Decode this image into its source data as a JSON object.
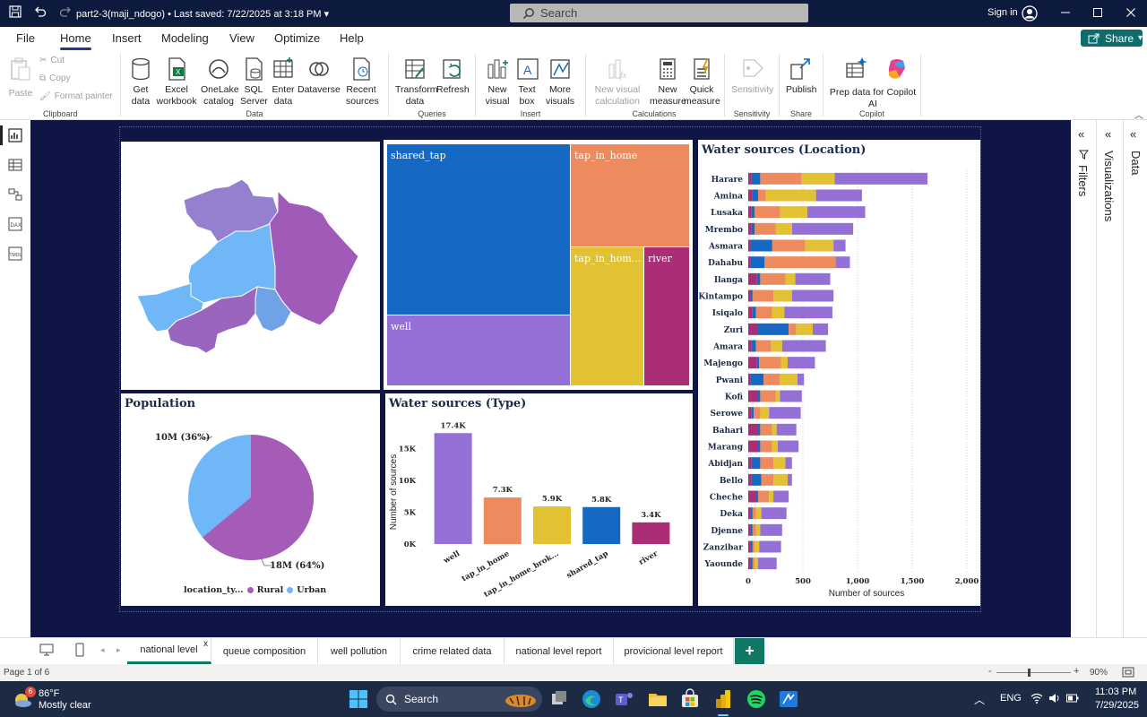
{
  "titlebar": {
    "document_title": "part2-3(maji_ndogo) • Last saved: 7/22/2025 at 3:18 PM",
    "search_placeholder": "Search",
    "signin_label": "Sign in"
  },
  "menu": {
    "tabs": [
      "File",
      "Home",
      "Insert",
      "Modeling",
      "View",
      "Optimize",
      "Help"
    ],
    "active_tab": "Home",
    "share_label": "Share"
  },
  "ribbon": {
    "clipboard": {
      "paste": "Paste",
      "cut": "Cut",
      "copy": "Copy",
      "format_painter": "Format painter",
      "group": "Clipboard"
    },
    "data": {
      "get_data": "Get data",
      "excel": "Excel workbook",
      "onelake": "OneLake catalog",
      "sql": "SQL Server",
      "enter": "Enter data",
      "dataverse": "Dataverse",
      "recent": "Recent sources",
      "group": "Data"
    },
    "queries": {
      "transform": "Transform data",
      "refresh": "Refresh",
      "group": "Queries"
    },
    "insert": {
      "new_visual": "New visual",
      "text_box": "Text box",
      "more_visuals": "More visuals",
      "group": "Insert"
    },
    "calculations": {
      "new_visual_calc": "New visual calculation",
      "new_measure": "New measure",
      "quick_measure": "Quick measure",
      "group": "Calculations"
    },
    "sensitivity": {
      "label": "Sensitivity",
      "group": "Sensitivity"
    },
    "share": {
      "publish": "Publish",
      "group": "Share"
    },
    "copilot": {
      "prep": "Prep data for Copilot AI",
      "group": "Copilot"
    }
  },
  "colors": {
    "well": "#9470d6",
    "tap_in_home": "#ee8b5e",
    "tap_in_home_broken": "#e2c233",
    "shared_tap": "#1669c2",
    "river": "#ab2d76",
    "urban": "#6fb7f7",
    "rural": "#a45cb6",
    "canvas": "#0f1545",
    "titlebar": "#0c1a3d"
  },
  "treemap": {
    "labels": {
      "shared_tap": "shared_tap",
      "tap_in_home": "tap_in_home",
      "tap_in_home_broken": "tap_in_hom...",
      "river": "river",
      "well": "well"
    }
  },
  "population": {
    "title": "Population",
    "label_urban": "10M (36%)",
    "label_rural": "18M (64%)",
    "legend_title": "location_ty...",
    "legend_rural": "Rural",
    "legend_urban": "Urban",
    "share_rural": 0.64,
    "share_urban": 0.36
  },
  "chart_data": [
    {
      "type": "bar",
      "title": "Water sources (Type)",
      "ylabel": "Number of sources",
      "xlabel": "",
      "categories": [
        "well",
        "tap_in_home",
        "tap_in_home_brok...",
        "shared_tap",
        "river"
      ],
      "values": [
        17400,
        7300,
        5900,
        5800,
        3400
      ],
      "data_labels": [
        "17.4K",
        "7.3K",
        "5.9K",
        "5.8K",
        "3.4K"
      ],
      "yticks": [
        "0K",
        "5K",
        "10K",
        "15K"
      ],
      "ytick_values": [
        0,
        5000,
        10000,
        15000
      ],
      "ylim": [
        0,
        18000
      ]
    },
    {
      "type": "bar",
      "orientation": "horizontal",
      "stacked": true,
      "title": "Water sources (Location)",
      "xlabel": "Number of sources",
      "ylabel": "",
      "xlim": [
        0,
        2000
      ],
      "xticks": [
        "0",
        "500",
        "1,000",
        "1,500",
        "2,000"
      ],
      "xtick_values": [
        0,
        500,
        1000,
        1500,
        2000
      ],
      "stack_order": [
        "river",
        "shared_tap",
        "tap_in_home",
        "tap_in_home_broken",
        "well"
      ],
      "rows": [
        {
          "label": "Harare",
          "values": [
            30,
            80,
            380,
            300,
            850
          ]
        },
        {
          "label": "Amina",
          "values": [
            40,
            50,
            70,
            460,
            420
          ]
        },
        {
          "label": "Lusaka",
          "values": [
            30,
            30,
            230,
            250,
            530
          ]
        },
        {
          "label": "Mrembo",
          "values": [
            30,
            30,
            190,
            150,
            560
          ]
        },
        {
          "label": "Asmara",
          "values": [
            20,
            200,
            300,
            260,
            110
          ]
        },
        {
          "label": "Dahabu",
          "values": [
            20,
            130,
            650,
            0,
            130
          ]
        },
        {
          "label": "Ilanga",
          "values": [
            80,
            30,
            230,
            90,
            320
          ]
        },
        {
          "label": "Kintampo",
          "values": [
            20,
            20,
            190,
            170,
            380
          ]
        },
        {
          "label": "Isiqalo",
          "values": [
            40,
            30,
            150,
            110,
            440
          ]
        },
        {
          "label": "Zuri",
          "values": [
            90,
            280,
            70,
            150,
            140
          ]
        },
        {
          "label": "Amara",
          "values": [
            30,
            40,
            140,
            100,
            400
          ]
        },
        {
          "label": "Majengo",
          "values": [
            80,
            20,
            200,
            60,
            250
          ]
        },
        {
          "label": "Pwani",
          "values": [
            20,
            120,
            150,
            160,
            60
          ]
        },
        {
          "label": "Kofi",
          "values": [
            90,
            20,
            140,
            40,
            200
          ]
        },
        {
          "label": "Serowe",
          "values": [
            30,
            20,
            60,
            80,
            290
          ]
        },
        {
          "label": "Bahari",
          "values": [
            90,
            20,
            110,
            40,
            180
          ]
        },
        {
          "label": "Marang",
          "values": [
            90,
            20,
            110,
            50,
            190
          ]
        },
        {
          "label": "Abidjan",
          "values": [
            30,
            80,
            120,
            110,
            60
          ]
        },
        {
          "label": "Bello",
          "values": [
            30,
            90,
            110,
            130,
            40
          ]
        },
        {
          "label": "Cheche",
          "values": [
            70,
            20,
            100,
            40,
            140
          ]
        },
        {
          "label": "Deka",
          "values": [
            20,
            20,
            30,
            50,
            230
          ]
        },
        {
          "label": "Djenne",
          "values": [
            20,
            20,
            30,
            40,
            200
          ]
        },
        {
          "label": "Zanzibar",
          "values": [
            20,
            20,
            20,
            40,
            200
          ]
        },
        {
          "label": "Yaounde",
          "values": [
            20,
            20,
            20,
            30,
            170
          ]
        }
      ]
    }
  ],
  "right_panes": {
    "filters": "Filters",
    "visualizations": "Visualizations",
    "data": "Data"
  },
  "page_tabs": {
    "tabs": [
      "national level",
      "queue composition",
      "well pollution",
      "crime related data",
      "national level report",
      "provicional level report"
    ],
    "active": "national level",
    "add_label": "+"
  },
  "status": {
    "page": "Page 1 of 6",
    "zoom": "90%"
  },
  "taskbar": {
    "weather_temp": "86°F",
    "weather_desc": "Mostly clear",
    "weather_badge": "6",
    "search": "Search",
    "lang": "ENG",
    "time": "11:03 PM",
    "date": "7/29/2025"
  }
}
